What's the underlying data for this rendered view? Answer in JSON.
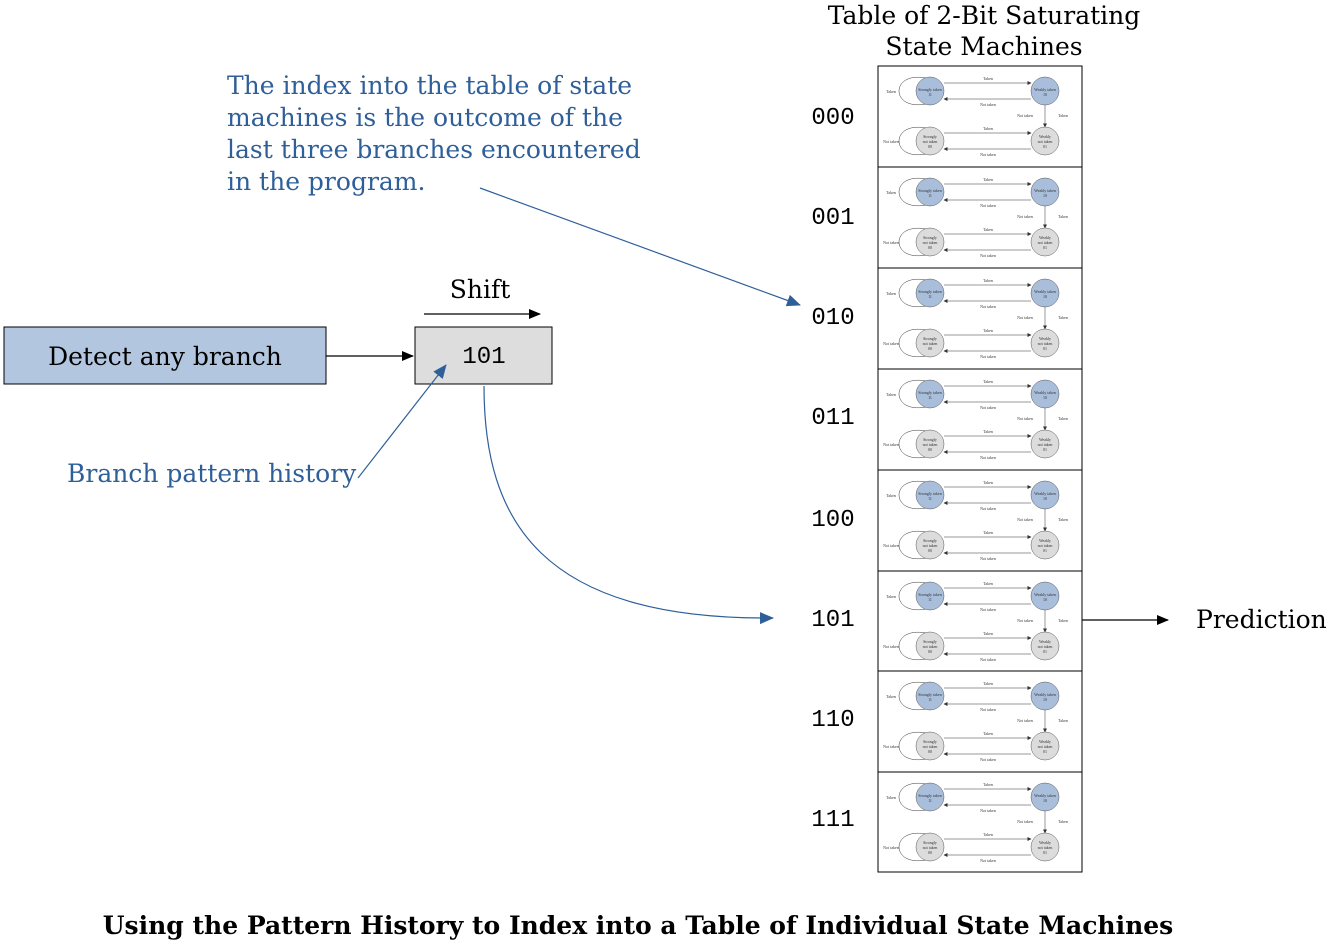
{
  "table_title": [
    "Table of 2-Bit Saturating",
    "State Machines"
  ],
  "annotation_index": [
    "The index into the table of state",
    "machines is the outcome of the",
    "last three branches encountered",
    "in the program."
  ],
  "detect_label": "Detect any branch",
  "shift_label": "Shift",
  "register_value": "101",
  "history_label": "Branch pattern history",
  "row_indices": [
    "000",
    "001",
    "010",
    "011",
    "100",
    "101",
    "110",
    "111"
  ],
  "prediction_label": "Prediction",
  "caption": "Using the Pattern History to Index into a Table of Individual State Machines",
  "state_machine": {
    "strongly_taken": [
      "Strongly taken",
      "11"
    ],
    "weakly_taken": [
      "Weakly taken",
      "10"
    ],
    "strongly_not_taken": [
      "Strongly",
      "not taken",
      "00"
    ],
    "weakly_not_taken": [
      "Weakly",
      "not taken",
      "01"
    ],
    "edge_taken": "Taken",
    "edge_not_taken": "Not taken"
  },
  "colors": {
    "accent_blue": "#2e5f99",
    "detect_fill": "#b3c6df",
    "register_fill": "#dddddd",
    "taken_state_fill": "#a9bedb",
    "not_taken_state_fill": "#dcdcdc"
  }
}
